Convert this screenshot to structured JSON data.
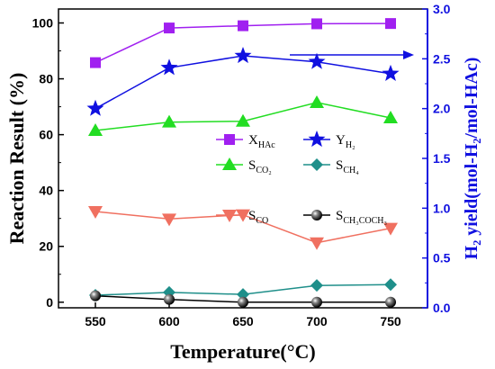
{
  "chart_data": {
    "type": "line",
    "x": [
      550,
      600,
      650,
      700,
      750
    ],
    "xlabel": "Temperature(°C)",
    "ylabel_left": "Reaction Result (%)",
    "ylabel_right": "H₂ yield(mol-H₂/mol-HAc)",
    "xlim": [
      525,
      775
    ],
    "ylim_left": [
      -2,
      105
    ],
    "ylim_right": [
      0,
      3.0
    ],
    "xticks": [
      550,
      600,
      650,
      700,
      750
    ],
    "yticks_left": [
      0,
      20,
      40,
      60,
      80,
      100
    ],
    "yticks_right": [
      0.0,
      0.5,
      1.0,
      1.5,
      2.0,
      2.5,
      3.0
    ],
    "grid": false,
    "legend_position": "center",
    "series": [
      {
        "name": "XHAc",
        "axis": "left",
        "values": [
          85.8,
          98.2,
          99.0,
          99.7,
          99.8
        ],
        "color": "#a020f0",
        "marker": "square"
      },
      {
        "name": "YH2",
        "axis": "right",
        "values": [
          2.0,
          2.41,
          2.53,
          2.47,
          2.35
        ],
        "color": "#1010e0",
        "marker": "star"
      },
      {
        "name": "SCO2",
        "axis": "left",
        "values": [
          61.5,
          64.5,
          64.8,
          71.5,
          66.0
        ],
        "color": "#22dd22",
        "marker": "triangle-up"
      },
      {
        "name": "SCH4",
        "axis": "left",
        "values": [
          2.5,
          3.5,
          2.8,
          6.0,
          6.3
        ],
        "color": "#1f8f8a",
        "marker": "diamond"
      },
      {
        "name": "SCO",
        "axis": "left",
        "values": [
          32.5,
          29.8,
          31.3,
          21.3,
          26.5
        ],
        "color": "#f07060",
        "marker": "triangle-down"
      },
      {
        "name": "SCH3COCH3",
        "axis": "left",
        "values": [
          2.3,
          1.0,
          0.0,
          0.0,
          0.0
        ],
        "color": "#000000",
        "marker": "sphere"
      }
    ],
    "legend": [
      {
        "main": "X",
        "sub": "HAc",
        "series": 0
      },
      {
        "main": "Y",
        "sub": "H₂",
        "series": 1
      },
      {
        "main": "S",
        "sub": "CO₂",
        "series": 2
      },
      {
        "main": "S",
        "sub": "CH₄",
        "series": 3
      },
      {
        "main": "S",
        "sub": "CO",
        "series": 4
      },
      {
        "main": "S",
        "sub": "CH₃COCH₃",
        "series": 5
      }
    ],
    "annotation": {
      "type": "arrow",
      "direction": "right",
      "points_to": "right axis",
      "color": "#1010e0"
    },
    "colors": {
      "axis_left": "#000000",
      "axis_right": "#1010e0"
    }
  }
}
